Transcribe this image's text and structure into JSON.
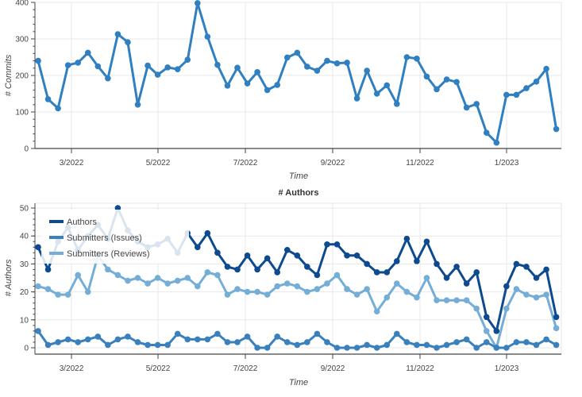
{
  "chart_data": [
    {
      "type": "line",
      "title": "",
      "xlabel": "Time",
      "ylabel": "# Commits",
      "ylim": [
        0,
        400
      ],
      "yticks": [
        0,
        100,
        200,
        300,
        400
      ],
      "x_tick_labels": [
        "3/2022",
        "5/2022",
        "7/2022",
        "9/2022",
        "11/2022",
        "1/2023"
      ],
      "x_unit": "week",
      "grid": true,
      "series": [
        {
          "name": "Commits",
          "color": "#2f7fc1",
          "values": [
            240,
            135,
            110,
            228,
            235,
            262,
            225,
            192,
            313,
            291,
            120,
            227,
            202,
            222,
            217,
            243,
            398,
            306,
            229,
            172,
            221,
            178,
            209,
            160,
            174,
            249,
            262,
            224,
            213,
            240,
            233,
            235,
            137,
            213,
            150,
            173,
            122,
            250,
            246,
            197,
            162,
            189,
            182,
            112,
            122,
            43,
            16,
            147,
            147,
            165,
            183,
            218,
            53
          ]
        }
      ]
    },
    {
      "type": "line",
      "title": "# Authors",
      "xlabel": "Time",
      "ylabel": "# Authors",
      "ylim": [
        0,
        50
      ],
      "yticks": [
        0,
        10,
        20,
        30,
        40,
        50
      ],
      "x_tick_labels": [
        "3/2022",
        "5/2022",
        "7/2022",
        "9/2022",
        "11/2022",
        "1/2023"
      ],
      "x_unit": "week",
      "grid": true,
      "legend": "top-left",
      "series": [
        {
          "name": "Authors",
          "color": "#0d4a8f",
          "values": [
            36,
            28,
            38,
            43,
            35,
            40,
            44,
            39,
            50,
            42,
            38,
            36,
            37,
            39,
            34,
            41,
            36,
            41,
            34,
            29,
            28,
            33,
            28,
            32,
            27,
            35,
            33,
            29,
            26,
            37,
            37,
            33,
            33,
            30,
            27,
            27,
            31,
            39,
            31,
            38,
            30,
            25,
            29,
            23,
            27,
            11,
            6,
            22,
            30,
            29,
            25,
            28,
            11
          ]
        },
        {
          "name": "Submitters (Issues)",
          "color": "#3a80bd",
          "values": [
            6,
            1,
            2,
            3,
            2,
            3,
            4,
            1,
            3,
            4,
            2,
            1,
            1,
            1,
            5,
            3,
            3,
            3,
            5,
            2,
            2,
            4,
            0,
            0,
            4,
            2,
            1,
            2,
            5,
            2,
            0,
            0,
            0,
            1,
            0,
            1,
            5,
            2,
            1,
            1,
            0,
            1,
            2,
            3,
            0,
            2,
            0,
            0,
            2,
            2,
            1,
            3,
            1
          ]
        },
        {
          "name": "Submitters (Reviews)",
          "color": "#74aed6",
          "values": [
            22,
            21,
            19,
            19,
            26,
            20,
            33,
            28,
            26,
            24,
            25,
            23,
            25,
            23,
            24,
            25,
            22,
            27,
            26,
            19,
            21,
            20,
            20,
            19,
            22,
            23,
            22,
            20,
            21,
            23,
            26,
            21,
            19,
            21,
            13,
            18,
            23,
            20,
            18,
            25,
            17,
            17,
            17,
            17,
            14,
            6,
            0,
            14,
            21,
            19,
            18,
            19,
            7
          ]
        }
      ]
    }
  ]
}
